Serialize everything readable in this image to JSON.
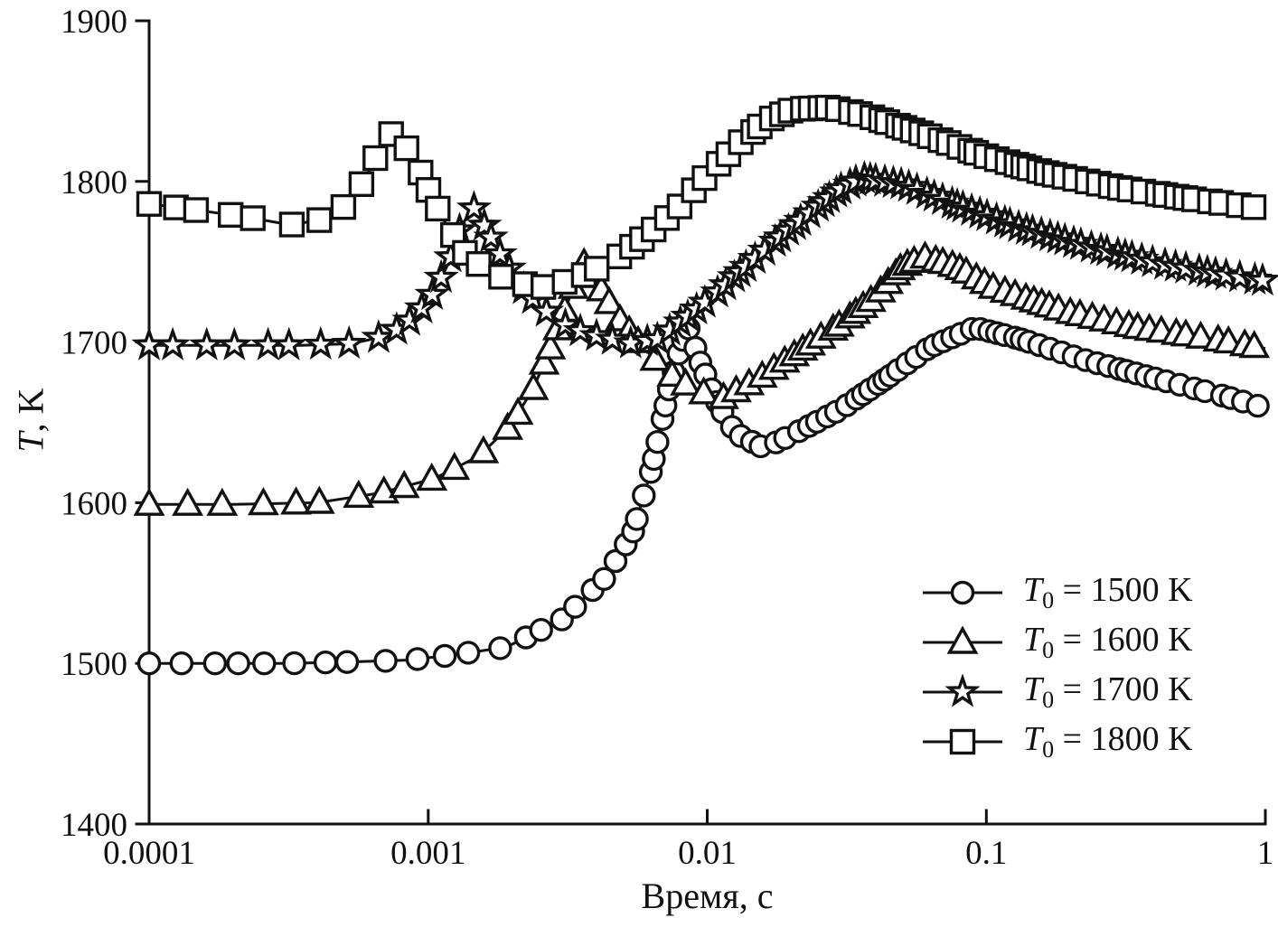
{
  "figure": {
    "background": "#ffffff",
    "ink": "#111111"
  },
  "axes": {
    "x_title_text": "Время, с",
    "y_title_symbol": "T",
    "y_title_rest": ", K",
    "x_tick_labels": [
      "0.0001",
      "0.001",
      "0.01",
      "0.1",
      "1"
    ],
    "y_tick_labels": [
      "1400",
      "1500",
      "1600",
      "1700",
      "1800",
      "1900"
    ]
  },
  "legend": {
    "items": [
      {
        "marker": "circle",
        "symbol": "T",
        "subscript": "0",
        "label_rest": " = 1500 K"
      },
      {
        "marker": "triangle",
        "symbol": "T",
        "subscript": "0",
        "label_rest": " = 1600 K"
      },
      {
        "marker": "star",
        "symbol": "T",
        "subscript": "0",
        "label_rest": " = 1700 K"
      },
      {
        "marker": "square",
        "symbol": "T",
        "subscript": "0",
        "label_rest": " = 1800 K"
      }
    ]
  },
  "chart_data": {
    "type": "line",
    "title": "",
    "xlabel": "Время, с",
    "ylabel": "T, K",
    "x_scale": "log",
    "xlim": [
      0.0001,
      1
    ],
    "ylim": [
      1400,
      1900
    ],
    "x_ticks": [
      0.0001,
      0.001,
      0.01,
      0.1,
      1
    ],
    "y_ticks": [
      1400,
      1500,
      1600,
      1700,
      1800,
      1900
    ],
    "grid": false,
    "legend_position": "lower right",
    "series": [
      {
        "name": "T0 = 1500 K",
        "marker": "circle",
        "spacing_scale": 1.0,
        "seed": 7,
        "points": [
          [
            0.0001,
            1500
          ],
          [
            0.00018,
            1500
          ],
          [
            0.00032,
            1500
          ],
          [
            0.00055,
            1501
          ],
          [
            0.00084,
            1502
          ],
          [
            0.0012,
            1505
          ],
          [
            0.0019,
            1510
          ],
          [
            0.003,
            1527
          ],
          [
            0.0043,
            1553
          ],
          [
            0.0054,
            1581
          ],
          [
            0.0063,
            1620
          ],
          [
            0.0073,
            1671
          ],
          [
            0.0081,
            1700
          ],
          [
            0.0086,
            1709
          ],
          [
            0.0094,
            1688
          ],
          [
            0.011,
            1660
          ],
          [
            0.0127,
            1643
          ],
          [
            0.016,
            1634
          ],
          [
            0.0205,
            1643
          ],
          [
            0.03,
            1658
          ],
          [
            0.0435,
            1677
          ],
          [
            0.063,
            1697
          ],
          [
            0.091,
            1709
          ],
          [
            0.132,
            1702
          ],
          [
            0.224,
            1689
          ],
          [
            0.41,
            1677
          ],
          [
            0.69,
            1667
          ],
          [
            1.0,
            1659
          ]
        ]
      },
      {
        "name": "T0 = 1600 K",
        "marker": "triangle",
        "spacing_scale": 1.02,
        "seed": 13,
        "points": [
          [
            0.0001,
            1599
          ],
          [
            0.0002,
            1599
          ],
          [
            0.0004,
            1600
          ],
          [
            0.00067,
            1606
          ],
          [
            0.00105,
            1615
          ],
          [
            0.00152,
            1629
          ],
          [
            0.00197,
            1648
          ],
          [
            0.00238,
            1671
          ],
          [
            0.0028,
            1700
          ],
          [
            0.0032,
            1727
          ],
          [
            0.00358,
            1750
          ],
          [
            0.00406,
            1736
          ],
          [
            0.00481,
            1715
          ],
          [
            0.0058,
            1698
          ],
          [
            0.00724,
            1681
          ],
          [
            0.00904,
            1670
          ],
          [
            0.0113,
            1665
          ],
          [
            0.0152,
            1677
          ],
          [
            0.0213,
            1694
          ],
          [
            0.03,
            1711
          ],
          [
            0.04,
            1728
          ],
          [
            0.05,
            1747
          ],
          [
            0.06,
            1753
          ],
          [
            0.078,
            1747
          ],
          [
            0.106,
            1734
          ],
          [
            0.193,
            1719
          ],
          [
            0.35,
            1709
          ],
          [
            0.64,
            1702
          ],
          [
            1.0,
            1696
          ]
        ]
      },
      {
        "name": "T0 = 1700 K",
        "marker": "star",
        "spacing_scale": 0.8,
        "seed": 29,
        "points": [
          [
            0.0001,
            1698
          ],
          [
            0.0002,
            1698
          ],
          [
            0.00035,
            1698
          ],
          [
            0.00053,
            1699
          ],
          [
            0.00072,
            1704
          ],
          [
            0.0009,
            1716
          ],
          [
            0.00104,
            1730
          ],
          [
            0.00119,
            1750
          ],
          [
            0.00131,
            1772
          ],
          [
            0.00145,
            1784
          ],
          [
            0.00162,
            1770
          ],
          [
            0.00183,
            1753
          ],
          [
            0.00217,
            1734
          ],
          [
            0.00255,
            1721
          ],
          [
            0.00319,
            1709
          ],
          [
            0.00414,
            1703
          ],
          [
            0.0054,
            1699
          ],
          [
            0.0067,
            1702
          ],
          [
            0.0084,
            1715
          ],
          [
            0.0109,
            1731
          ],
          [
            0.0142,
            1749
          ],
          [
            0.0185,
            1766
          ],
          [
            0.024,
            1782
          ],
          [
            0.03,
            1795
          ],
          [
            0.036,
            1802
          ],
          [
            0.0505,
            1798
          ],
          [
            0.0786,
            1785
          ],
          [
            0.133,
            1771
          ],
          [
            0.224,
            1760
          ],
          [
            0.41,
            1749
          ],
          [
            0.69,
            1742
          ],
          [
            1.0,
            1738
          ]
        ]
      },
      {
        "name": "T0 = 1800 K",
        "marker": "square",
        "spacing_scale": 0.95,
        "seed": 53,
        "points": [
          [
            0.0001,
            1786
          ],
          [
            0.00015,
            1782
          ],
          [
            0.00022,
            1778
          ],
          [
            0.00032,
            1773
          ],
          [
            0.00041,
            1776
          ],
          [
            0.00052,
            1786
          ],
          [
            0.0006,
            1803
          ],
          [
            0.00067,
            1820
          ],
          [
            0.00073,
            1830
          ],
          [
            0.00082,
            1823
          ],
          [
            0.00092,
            1809
          ],
          [
            0.00103,
            1790
          ],
          [
            0.00117,
            1772
          ],
          [
            0.00136,
            1755
          ],
          [
            0.00164,
            1744
          ],
          [
            0.00205,
            1737
          ],
          [
            0.00266,
            1734
          ],
          [
            0.00344,
            1740
          ],
          [
            0.00465,
            1751
          ],
          [
            0.00604,
            1766
          ],
          [
            0.00783,
            1783
          ],
          [
            0.01,
            1804
          ],
          [
            0.0131,
            1824
          ],
          [
            0.0164,
            1838
          ],
          [
            0.0205,
            1845
          ],
          [
            0.0276,
            1846
          ],
          [
            0.0374,
            1841
          ],
          [
            0.0584,
            1830
          ],
          [
            0.0985,
            1816
          ],
          [
            0.166,
            1805
          ],
          [
            0.3,
            1796
          ],
          [
            0.547,
            1789
          ],
          [
            1.0,
            1783
          ]
        ]
      }
    ]
  }
}
